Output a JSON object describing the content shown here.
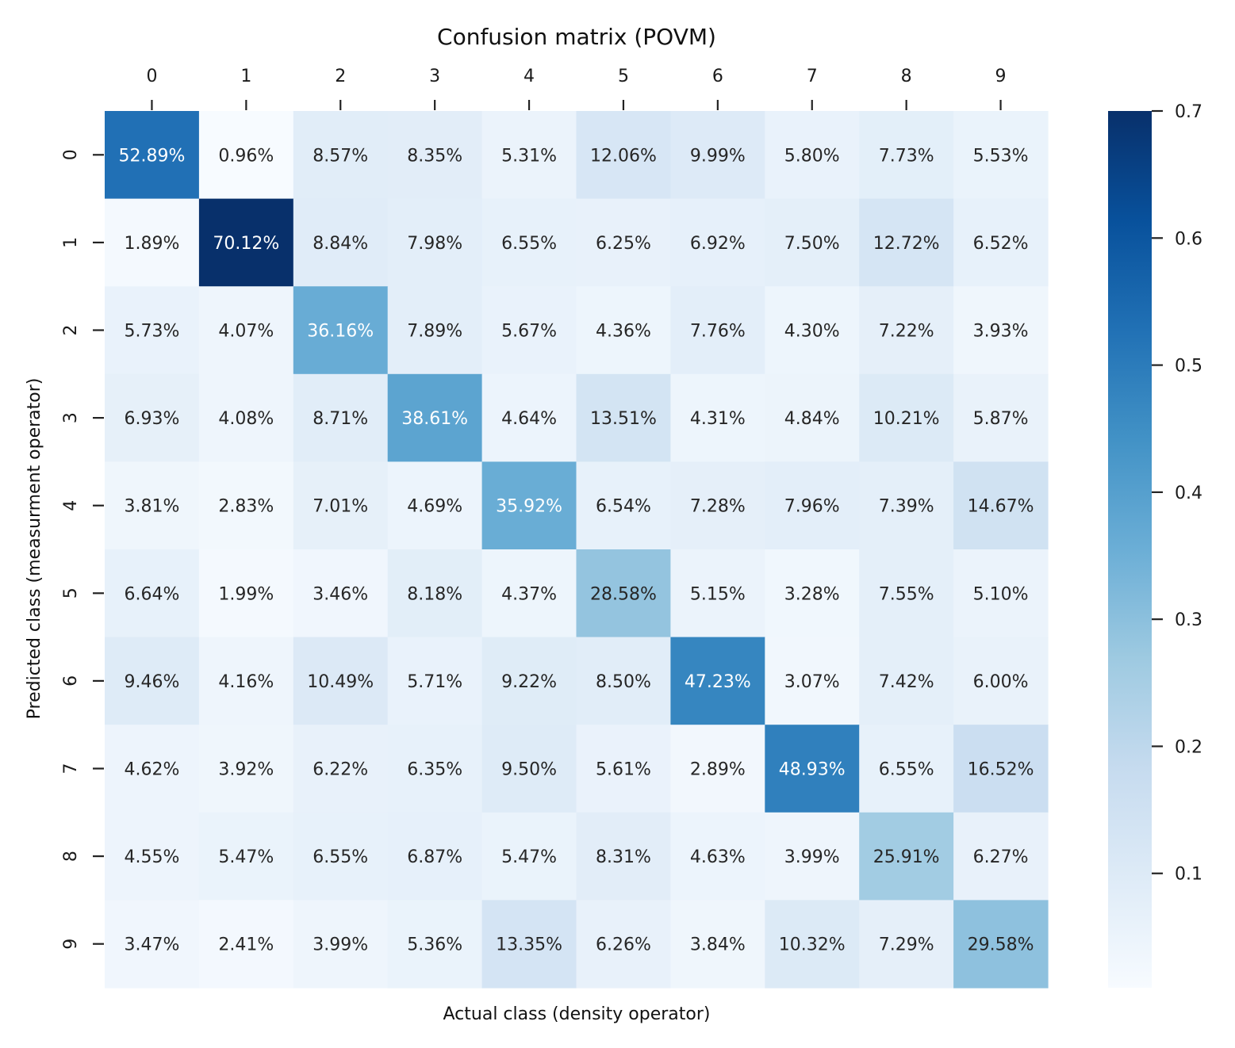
{
  "chart_data": {
    "type": "heatmap",
    "title": "Confusion matrix (POVM)",
    "xlabel": "Actual class (density operator)",
    "ylabel": "Predicted class (measurment operator)",
    "x_categories": [
      "0",
      "1",
      "2",
      "3",
      "4",
      "5",
      "6",
      "7",
      "8",
      "9"
    ],
    "y_categories": [
      "0",
      "1",
      "2",
      "3",
      "4",
      "5",
      "6",
      "7",
      "8",
      "9"
    ],
    "x_tick_position": "top",
    "colormap": "Blues",
    "colorbar": {
      "range": [
        0.01,
        0.7
      ],
      "ticks": [
        0.1,
        0.2,
        0.3,
        0.4,
        0.5,
        0.6,
        0.7
      ],
      "tick_labels": [
        "0.1",
        "0.2",
        "0.3",
        "0.4",
        "0.5",
        "0.6",
        "0.7"
      ]
    },
    "values": [
      [
        0.5289,
        0.0096,
        0.0857,
        0.0835,
        0.0531,
        0.1206,
        0.0999,
        0.058,
        0.0773,
        0.0553
      ],
      [
        0.0189,
        0.7012,
        0.0884,
        0.0798,
        0.0655,
        0.0625,
        0.0692,
        0.075,
        0.1272,
        0.0652
      ],
      [
        0.0573,
        0.0407,
        0.3616,
        0.0789,
        0.0567,
        0.0436,
        0.0776,
        0.043,
        0.0722,
        0.0393
      ],
      [
        0.0693,
        0.0408,
        0.0871,
        0.3861,
        0.0464,
        0.1351,
        0.0431,
        0.0484,
        0.1021,
        0.0587
      ],
      [
        0.0381,
        0.0283,
        0.0701,
        0.0469,
        0.3592,
        0.0654,
        0.0728,
        0.0796,
        0.0739,
        0.1467
      ],
      [
        0.0664,
        0.0199,
        0.0346,
        0.0818,
        0.0437,
        0.2858,
        0.0515,
        0.0328,
        0.0755,
        0.051
      ],
      [
        0.0946,
        0.0416,
        0.1049,
        0.0571,
        0.0922,
        0.085,
        0.4723,
        0.0307,
        0.0742,
        0.06
      ],
      [
        0.0462,
        0.0392,
        0.0622,
        0.0635,
        0.095,
        0.0561,
        0.0289,
        0.4893,
        0.0655,
        0.1652
      ],
      [
        0.0455,
        0.0547,
        0.0655,
        0.0687,
        0.0547,
        0.0831,
        0.0463,
        0.0399,
        0.2591,
        0.0627
      ],
      [
        0.0347,
        0.0241,
        0.0399,
        0.0536,
        0.1335,
        0.0626,
        0.0384,
        0.1032,
        0.0729,
        0.2958
      ]
    ],
    "cell_labels": [
      [
        "52.89%",
        "0.96%",
        "8.57%",
        "8.35%",
        "5.31%",
        "12.06%",
        "9.99%",
        "5.80%",
        "7.73%",
        "5.53%"
      ],
      [
        "1.89%",
        "70.12%",
        "8.84%",
        "7.98%",
        "6.55%",
        "6.25%",
        "6.92%",
        "7.50%",
        "12.72%",
        "6.52%"
      ],
      [
        "5.73%",
        "4.07%",
        "36.16%",
        "7.89%",
        "5.67%",
        "4.36%",
        "7.76%",
        "4.30%",
        "7.22%",
        "3.93%"
      ],
      [
        "6.93%",
        "4.08%",
        "8.71%",
        "38.61%",
        "4.64%",
        "13.51%",
        "4.31%",
        "4.84%",
        "10.21%",
        "5.87%"
      ],
      [
        "3.81%",
        "2.83%",
        "7.01%",
        "4.69%",
        "35.92%",
        "6.54%",
        "7.28%",
        "7.96%",
        "7.39%",
        "14.67%"
      ],
      [
        "6.64%",
        "1.99%",
        "3.46%",
        "8.18%",
        "4.37%",
        "28.58%",
        "5.15%",
        "3.28%",
        "7.55%",
        "5.10%"
      ],
      [
        "9.46%",
        "4.16%",
        "10.49%",
        "5.71%",
        "9.22%",
        "8.50%",
        "47.23%",
        "3.07%",
        "7.42%",
        "6.00%"
      ],
      [
        "4.62%",
        "3.92%",
        "6.22%",
        "6.35%",
        "9.50%",
        "5.61%",
        "2.89%",
        "48.93%",
        "6.55%",
        "16.52%"
      ],
      [
        "4.55%",
        "5.47%",
        "6.55%",
        "6.87%",
        "5.47%",
        "8.31%",
        "4.63%",
        "3.99%",
        "25.91%",
        "6.27%"
      ],
      [
        "3.47%",
        "2.41%",
        "3.99%",
        "5.36%",
        "13.35%",
        "6.26%",
        "3.84%",
        "10.32%",
        "7.29%",
        "29.58%"
      ]
    ]
  }
}
